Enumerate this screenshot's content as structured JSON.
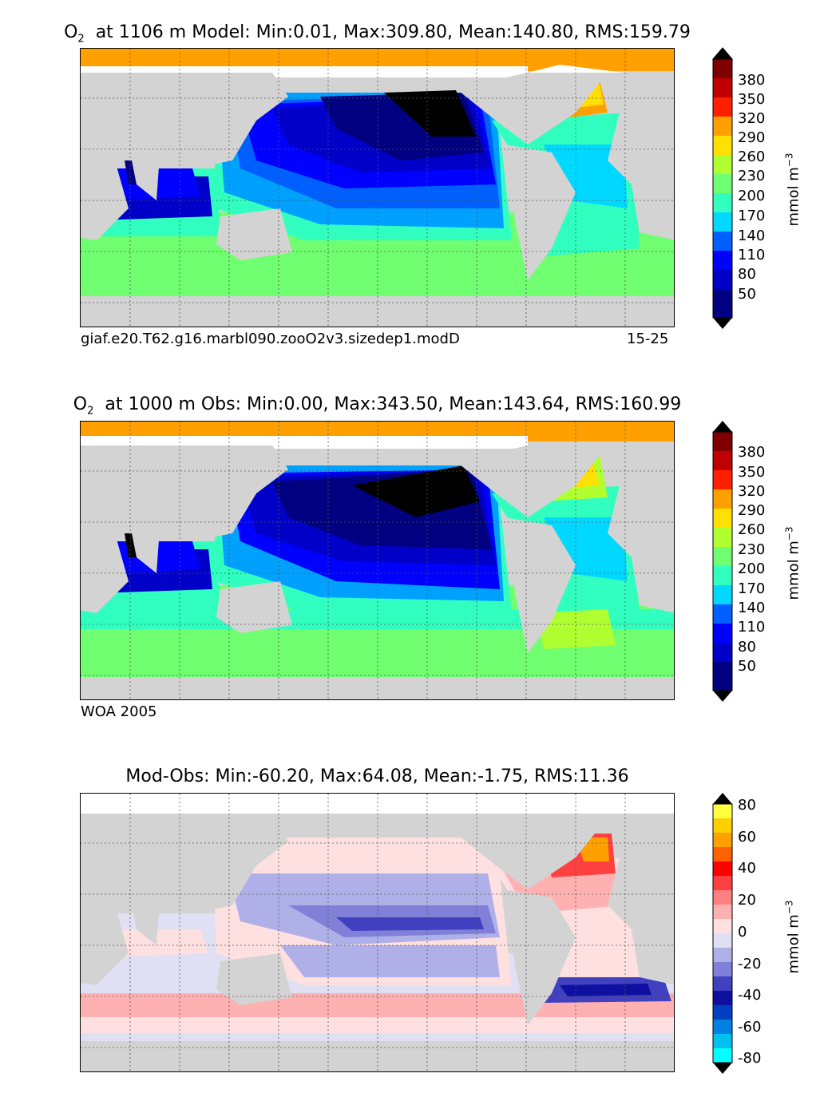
{
  "panels": [
    {
      "title": "at 1106 m Model: Min:0.01, Max:309.80, Mean:140.80, RMS:159.79",
      "variable": "O",
      "variable_sub": "2",
      "caption_left": "giaf.e20.T62.g16.marbl090.zooO2v3.sizedep1.modD",
      "caption_right": "15-25",
      "units": "mmol m",
      "units_exp": "−3",
      "colorbar_ticks": [
        "380",
        "350",
        "320",
        "290",
        "260",
        "230",
        "200",
        "170",
        "140",
        "110",
        "80",
        "50"
      ]
    },
    {
      "title": "at 1000 m Obs: Min:0.00, Max:343.50, Mean:143.64, RMS:160.99",
      "variable": "O",
      "variable_sub": "2",
      "caption_left": "WOA 2005",
      "units": "mmol m",
      "units_exp": "−3",
      "colorbar_ticks": [
        "380",
        "350",
        "320",
        "290",
        "260",
        "230",
        "200",
        "170",
        "140",
        "110",
        "80",
        "50"
      ]
    },
    {
      "title": "Mod-Obs: Min:-60.20, Max:64.08, Mean:-1.75, RMS:11.36",
      "units": "mmol m",
      "units_exp": "−3",
      "colorbar_ticks": [
        "80",
        "60",
        "40",
        "20",
        "0",
        "-20",
        "-40",
        "-60",
        "-80"
      ]
    }
  ],
  "colors": {
    "land": "#d3d3d3",
    "no_data": "#ffffff",
    "o2_scale": [
      "#000080",
      "#0000c8",
      "#0000ff",
      "#0060ff",
      "#00a0ff",
      "#00d8ff",
      "#30ffc0",
      "#70ff70",
      "#b0ff30",
      "#ffe000",
      "#ffa000",
      "#ff6000",
      "#ff2000",
      "#c00000",
      "#800000"
    ],
    "diff_scale": [
      "#00ffff",
      "#00c0f0",
      "#0080e0",
      "#0040c0",
      "#1010a0",
      "#4040c0",
      "#8080d8",
      "#b0b0e8",
      "#e0e0f4",
      "#ffe0e0",
      "#ffb0b0",
      "#ff8080",
      "#ff4040",
      "#ff0000",
      "#ff6000",
      "#ffa000",
      "#ffd000",
      "#ffff40"
    ]
  }
}
